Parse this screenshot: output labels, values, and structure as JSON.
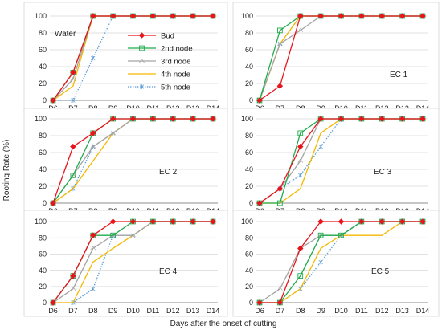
{
  "figure": {
    "ylabel": "Rooting Rate (%)",
    "xlabel": "Days after the onset of cutting",
    "x_ticks": [
      "D6",
      "D7",
      "D8",
      "D9",
      "D10",
      "D11",
      "D12",
      "D13",
      "D14"
    ],
    "y_ticks": [
      "0",
      "20",
      "40",
      "60",
      "80",
      "100"
    ]
  },
  "legend": [
    {
      "name": "Bud",
      "color": "#e8141b",
      "marker": "diamond",
      "dash": "solid"
    },
    {
      "name": "2nd node",
      "color": "#1fab4b",
      "marker": "square",
      "dash": "solid"
    },
    {
      "name": "3rd node",
      "color": "#a3a3a3",
      "marker": "triangle",
      "dash": "solid"
    },
    {
      "name": "4th node",
      "color": "#f5b800",
      "marker": "none",
      "dash": "solid"
    },
    {
      "name": "5th node",
      "color": "#5b9bd5",
      "marker": "star",
      "dash": "dotted"
    }
  ],
  "chart_data": [
    {
      "type": "line",
      "title": "Water",
      "x": [
        "D6",
        "D7",
        "D8",
        "D9",
        "D10",
        "D11",
        "D12",
        "D13",
        "D14"
      ],
      "ylim": [
        0,
        100
      ],
      "series": [
        {
          "name": "Bud",
          "values": [
            0,
            33,
            100,
            100,
            100,
            100,
            100,
            100,
            100
          ]
        },
        {
          "name": "2nd node",
          "values": [
            0,
            33,
            100,
            100,
            100,
            100,
            100,
            100,
            100
          ]
        },
        {
          "name": "3rd node",
          "values": [
            0,
            25,
            100,
            100,
            100,
            100,
            100,
            100,
            100
          ]
        },
        {
          "name": "4th node",
          "values": [
            0,
            17,
            100,
            100,
            100,
            100,
            100,
            100,
            100
          ]
        },
        {
          "name": "5th node",
          "values": [
            0,
            0,
            50,
            100,
            100,
            100,
            100,
            100,
            100
          ]
        }
      ]
    },
    {
      "type": "line",
      "title": "EC 1",
      "x": [
        "D6",
        "D7",
        "D8",
        "D9",
        "D10",
        "D11",
        "D12",
        "D13",
        "D14"
      ],
      "ylim": [
        0,
        100
      ],
      "series": [
        {
          "name": "Bud",
          "values": [
            0,
            17,
            100,
            100,
            100,
            100,
            100,
            100,
            100
          ]
        },
        {
          "name": "2nd node",
          "values": [
            0,
            83,
            100,
            100,
            100,
            100,
            100,
            100,
            100
          ]
        },
        {
          "name": "3rd node",
          "values": [
            0,
            67,
            83,
            100,
            100,
            100,
            100,
            100,
            100
          ]
        },
        {
          "name": "4th node",
          "values": [
            0,
            67,
            100,
            100,
            100,
            100,
            100,
            100,
            100
          ]
        },
        {
          "name": "5th node",
          "values": [
            0,
            67,
            100,
            100,
            100,
            100,
            100,
            100,
            100
          ]
        }
      ]
    },
    {
      "type": "line",
      "title": "EC 2",
      "x": [
        "D6",
        "D7",
        "D8",
        "D9",
        "D10",
        "D11",
        "D12",
        "D13",
        "D14"
      ],
      "ylim": [
        0,
        100
      ],
      "series": [
        {
          "name": "Bud",
          "values": [
            0,
            67,
            83,
            100,
            100,
            100,
            100,
            100,
            100
          ]
        },
        {
          "name": "2nd node",
          "values": [
            0,
            33,
            83,
            100,
            100,
            100,
            100,
            100,
            100
          ]
        },
        {
          "name": "3rd node",
          "values": [
            0,
            33,
            67,
            83,
            100,
            100,
            100,
            100,
            100
          ]
        },
        {
          "name": "4th node",
          "values": [
            0,
            17,
            50,
            83,
            100,
            100,
            100,
            100,
            100
          ]
        },
        {
          "name": "5th node",
          "values": [
            0,
            17,
            67,
            83,
            100,
            100,
            100,
            100,
            100
          ]
        }
      ]
    },
    {
      "type": "line",
      "title": "EC 3",
      "x": [
        "D6",
        "D7",
        "D8",
        "D9",
        "D10",
        "D11",
        "D12",
        "D13",
        "D14"
      ],
      "ylim": [
        0,
        100
      ],
      "series": [
        {
          "name": "Bud",
          "values": [
            0,
            17,
            67,
            100,
            100,
            100,
            100,
            100,
            100
          ]
        },
        {
          "name": "2nd node",
          "values": [
            0,
            0,
            83,
            100,
            100,
            100,
            100,
            100,
            100
          ]
        },
        {
          "name": "3rd node",
          "values": [
            0,
            17,
            50,
            100,
            100,
            100,
            100,
            100,
            100
          ]
        },
        {
          "name": "4th node",
          "values": [
            0,
            0,
            17,
            83,
            100,
            100,
            100,
            100,
            100
          ]
        },
        {
          "name": "5th node",
          "values": [
            0,
            17,
            33,
            67,
            100,
            100,
            100,
            100,
            100
          ]
        }
      ]
    },
    {
      "type": "line",
      "title": "EC 4",
      "x": [
        "D6",
        "D7",
        "D8",
        "D9",
        "D10",
        "D11",
        "D12",
        "D13",
        "D14"
      ],
      "ylim": [
        0,
        100
      ],
      "series": [
        {
          "name": "Bud",
          "values": [
            0,
            33,
            83,
            100,
            100,
            100,
            100,
            100,
            100
          ]
        },
        {
          "name": "2nd node",
          "values": [
            0,
            33,
            83,
            83,
            100,
            100,
            100,
            100,
            100
          ]
        },
        {
          "name": "3rd node",
          "values": [
            0,
            17,
            67,
            83,
            83,
            100,
            100,
            100,
            100
          ]
        },
        {
          "name": "4th node",
          "values": [
            0,
            0,
            50,
            67,
            83,
            100,
            100,
            100,
            100
          ]
        },
        {
          "name": "5th node",
          "values": [
            0,
            0,
            17,
            83,
            83,
            100,
            100,
            100,
            100
          ]
        }
      ]
    },
    {
      "type": "line",
      "title": "EC 5",
      "x": [
        "D6",
        "D7",
        "D8",
        "D9",
        "D10",
        "D11",
        "D12",
        "D13",
        "D14"
      ],
      "ylim": [
        0,
        100
      ],
      "series": [
        {
          "name": "Bud",
          "values": [
            0,
            0,
            67,
            100,
            100,
            100,
            100,
            100,
            100
          ]
        },
        {
          "name": "2nd node",
          "values": [
            0,
            0,
            33,
            83,
            83,
            100,
            100,
            100,
            100
          ]
        },
        {
          "name": "3rd node",
          "values": [
            0,
            17,
            67,
            83,
            83,
            100,
            100,
            100,
            100
          ]
        },
        {
          "name": "4th node",
          "values": [
            0,
            0,
            17,
            67,
            83,
            83,
            83,
            100,
            100
          ]
        },
        {
          "name": "5th node",
          "values": [
            0,
            0,
            17,
            50,
            83,
            100,
            100,
            100,
            100
          ]
        }
      ]
    }
  ]
}
